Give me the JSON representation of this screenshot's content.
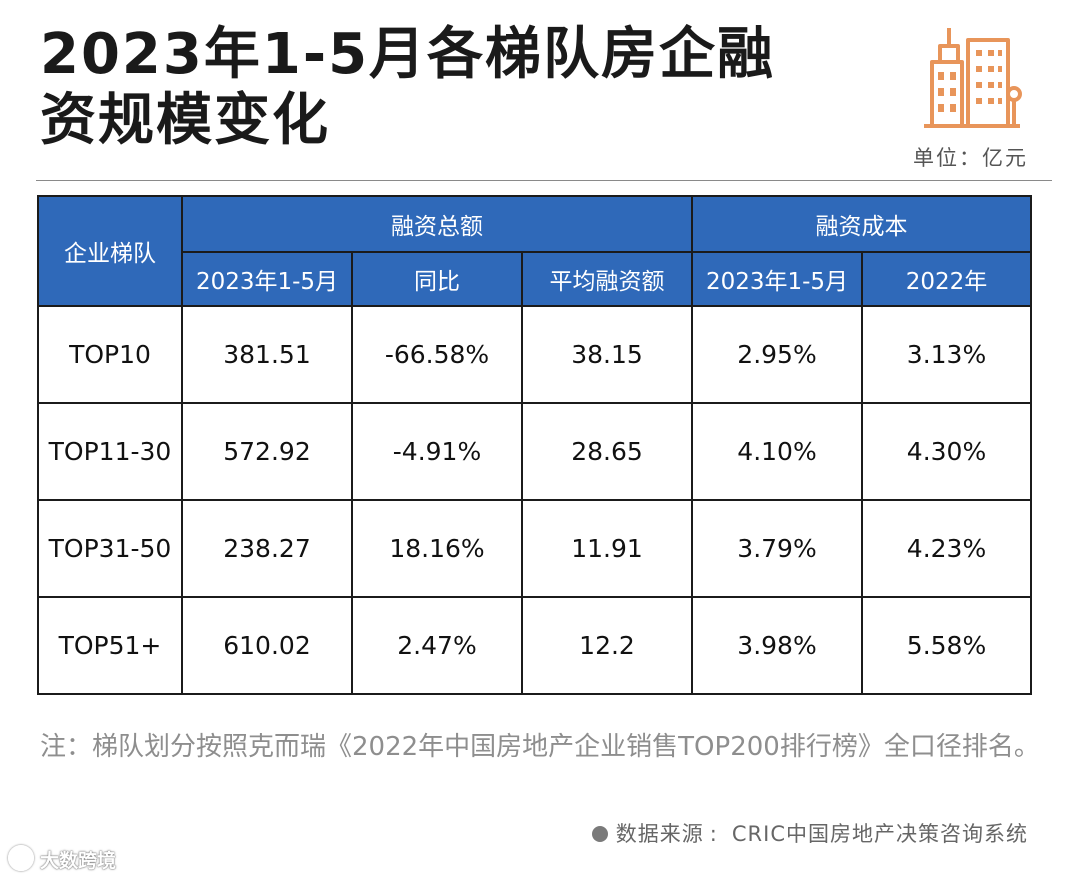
{
  "title": {
    "line1": "2023年1-5月各梯队房企融",
    "line2": "资规模变化"
  },
  "unit": "单位：亿元",
  "icon": "building-icon",
  "accent_color": "#2f69b9",
  "logo_color": "#e8955a",
  "table": {
    "corner_header": "企业梯队",
    "group_headers": [
      "融资总额",
      "融资成本"
    ],
    "sub_headers": [
      "2023年1-5月",
      "同比",
      "平均融资额",
      "2023年1-5月",
      "2022年"
    ],
    "rows": [
      [
        "TOP10",
        "381.51",
        "-66.58%",
        "38.15",
        "2.95%",
        "3.13%"
      ],
      [
        "TOP11-30",
        "572.92",
        "-4.91%",
        "28.65",
        "4.10%",
        "4.30%"
      ],
      [
        "TOP31-50",
        "238.27",
        "18.16%",
        "11.91",
        "3.79%",
        "4.23%"
      ],
      [
        "TOP51+",
        "610.02",
        "2.47%",
        "12.2",
        "3.98%",
        "5.58%"
      ]
    ]
  },
  "note": "注：梯队划分按照克而瑞《2022年中国房地产企业销售TOP200排行榜》全口径排名。",
  "source": {
    "label": "数据来源",
    "text": "CRIC中国房地产决策咨询系统"
  },
  "brand": "大数跨境"
}
